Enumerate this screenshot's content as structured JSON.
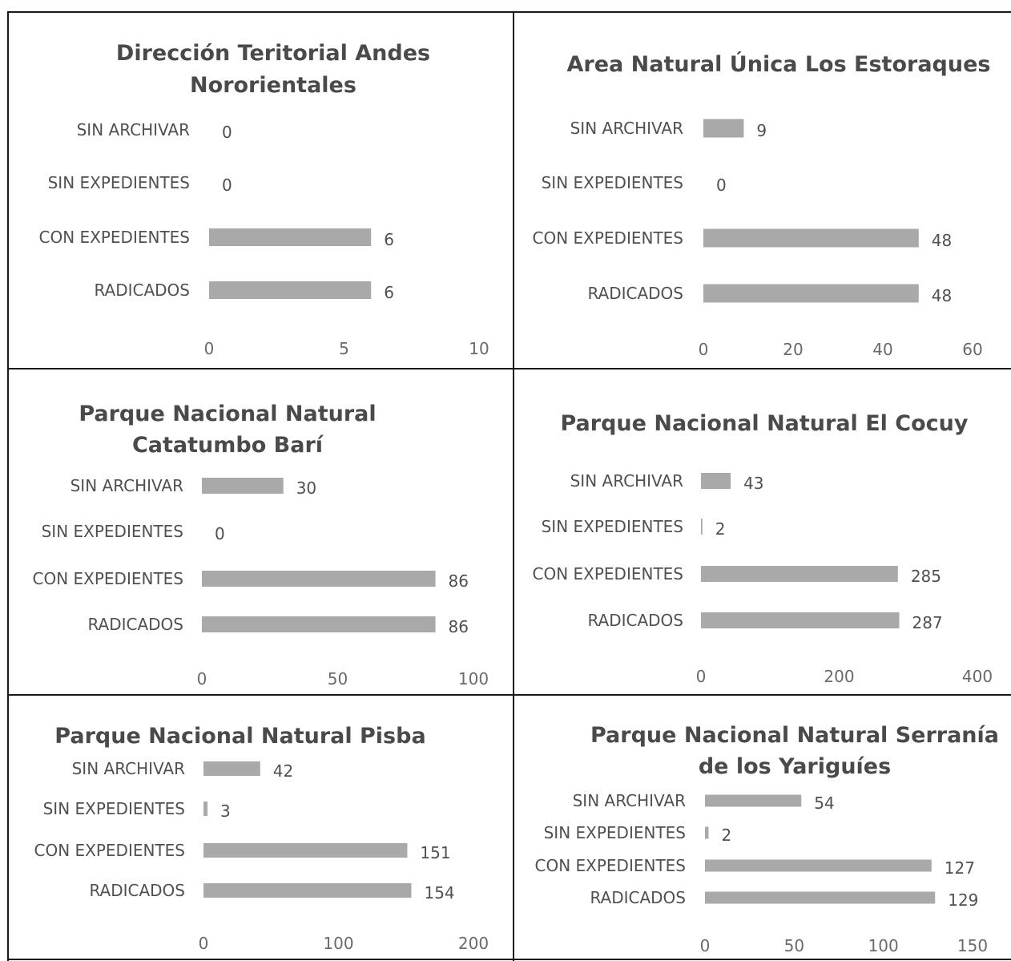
{
  "chart_data": [
    {
      "type": "bar",
      "orientation": "horizontal",
      "title": "Dirección Teritorial Andes Nororientales",
      "categories": [
        "SIN ARCHIVAR",
        "SIN EXPEDIENTES",
        "CON EXPEDIENTES",
        "RADICADOS"
      ],
      "values": [
        0,
        0,
        6,
        6
      ],
      "xlim": [
        0,
        10
      ],
      "xticks": [
        0,
        5,
        10
      ],
      "bar_color": "#a9a9a9",
      "grid": false
    },
    {
      "type": "bar",
      "orientation": "horizontal",
      "title": "Area Natural Única Los Estoraques",
      "categories": [
        "SIN ARCHIVAR",
        "SIN EXPEDIENTES",
        "CON EXPEDIENTES",
        "RADICADOS"
      ],
      "values": [
        9,
        0,
        48,
        48
      ],
      "xlim": [
        0,
        60
      ],
      "xticks": [
        0,
        20,
        40,
        60
      ],
      "bar_color": "#a9a9a9",
      "grid": false
    },
    {
      "type": "bar",
      "orientation": "horizontal",
      "title": "Parque Nacional Natural Catatumbo Barí",
      "categories": [
        "SIN ARCHIVAR",
        "SIN EXPEDIENTES",
        "CON EXPEDIENTES",
        "RADICADOS"
      ],
      "values": [
        30,
        0,
        86,
        86
      ],
      "xlim": [
        0,
        100
      ],
      "xticks": [
        0,
        50,
        100
      ],
      "bar_color": "#a9a9a9",
      "grid": false
    },
    {
      "type": "bar",
      "orientation": "horizontal",
      "title": "Parque Nacional Natural El Cocuy",
      "categories": [
        "SIN ARCHIVAR",
        "SIN EXPEDIENTES",
        "CON EXPEDIENTES",
        "RADICADOS"
      ],
      "values": [
        43,
        2,
        285,
        287
      ],
      "xlim": [
        0,
        400
      ],
      "xticks": [
        0,
        200,
        400
      ],
      "bar_color": "#a9a9a9",
      "grid": false
    },
    {
      "type": "bar",
      "orientation": "horizontal",
      "title": "Parque Nacional Natural Pisba",
      "categories": [
        "SIN ARCHIVAR",
        "SIN EXPEDIENTES",
        "CON EXPEDIENTES",
        "RADICADOS"
      ],
      "values": [
        42,
        3,
        151,
        154
      ],
      "xlim": [
        0,
        200
      ],
      "xticks": [
        0,
        100,
        200
      ],
      "bar_color": "#a9a9a9",
      "grid": false
    },
    {
      "type": "bar",
      "orientation": "horizontal",
      "title": "Parque Nacional Natural Serranía de los Yariguíes",
      "categories": [
        "SIN ARCHIVAR",
        "SIN EXPEDIENTES",
        "CON EXPEDIENTES",
        "RADICADOS"
      ],
      "values": [
        54,
        2,
        127,
        129
      ],
      "xlim": [
        0,
        150
      ],
      "xticks": [
        0,
        50,
        100,
        150
      ],
      "bar_color": "#a9a9a9",
      "grid": false
    }
  ]
}
